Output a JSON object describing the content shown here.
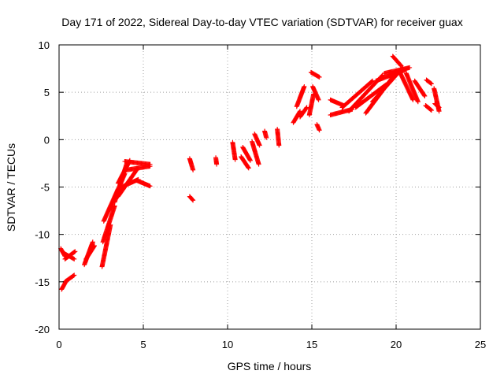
{
  "chart_data": {
    "type": "scatter",
    "title": "Day 171 of 2022, Sidereal Day-to-day VTEC variation (SDTVAR) for receiver guax",
    "xlabel": "GPS time / hours",
    "ylabel": "SDTVAR / TECUs",
    "xlim": [
      0,
      25
    ],
    "ylim": [
      -20,
      10
    ],
    "xticks": [
      0,
      5,
      10,
      15,
      20,
      25
    ],
    "yticks": [
      -20,
      -15,
      -10,
      -5,
      0,
      5,
      10
    ],
    "xtick_labels": [
      "0",
      "5",
      "10",
      "15",
      "20",
      "25"
    ],
    "ytick_labels": [
      "-20",
      "-15",
      "-10",
      "-5",
      "0",
      "5",
      "10"
    ],
    "grid": true,
    "marker": "plus",
    "color": "#ff0000",
    "segments": [
      {
        "x0": 0.15,
        "x1": 0.4,
        "y0": -15.8,
        "y1": -15.0
      },
      {
        "x0": 0.35,
        "x1": 0.9,
        "y0": -15.0,
        "y1": -14.3
      },
      {
        "x0": 0.1,
        "x1": 0.35,
        "y0": -11.5,
        "y1": -12.3
      },
      {
        "x0": 0.3,
        "x1": 0.9,
        "y0": -12.0,
        "y1": -12.6
      },
      {
        "x0": 0.35,
        "x1": 0.95,
        "y0": -12.6,
        "y1": -11.8
      },
      {
        "x0": 1.5,
        "x1": 2.0,
        "y0": -13.2,
        "y1": -10.8
      },
      {
        "x0": 1.6,
        "x1": 2.1,
        "y0": -12.6,
        "y1": -11.2
      },
      {
        "x0": 2.55,
        "x1": 3.05,
        "y0": -13.4,
        "y1": -9.0
      },
      {
        "x0": 2.6,
        "x1": 3.3,
        "y0": -10.8,
        "y1": -7.0
      },
      {
        "x0": 2.65,
        "x1": 3.5,
        "y0": -8.6,
        "y1": -5.2
      },
      {
        "x0": 3.0,
        "x1": 3.9,
        "y0": -7.4,
        "y1": -3.6
      },
      {
        "x0": 3.3,
        "x1": 4.0,
        "y0": -6.6,
        "y1": -2.6
      },
      {
        "x0": 3.5,
        "x1": 4.2,
        "y0": -4.6,
        "y1": -2.2
      },
      {
        "x0": 3.9,
        "x1": 5.4,
        "y0": -2.3,
        "y1": -2.6
      },
      {
        "x0": 4.0,
        "x1": 5.4,
        "y0": -3.2,
        "y1": -2.8
      },
      {
        "x0": 3.5,
        "x1": 4.6,
        "y0": -6.0,
        "y1": -3.2
      },
      {
        "x0": 4.6,
        "x1": 5.4,
        "y0": -4.3,
        "y1": -4.9
      },
      {
        "x0": 3.7,
        "x1": 4.7,
        "y0": -5.0,
        "y1": -4.2
      },
      {
        "x0": 7.75,
        "x1": 7.95,
        "y0": -2.0,
        "y1": -3.2
      },
      {
        "x0": 7.75,
        "x1": 7.95,
        "y0": -6.0,
        "y1": -6.4
      },
      {
        "x0": 9.3,
        "x1": 9.35,
        "y0": -1.9,
        "y1": -2.6
      },
      {
        "x0": 10.3,
        "x1": 10.45,
        "y0": -0.3,
        "y1": -2.1
      },
      {
        "x0": 10.8,
        "x1": 11.25,
        "y0": -1.8,
        "y1": -3.0
      },
      {
        "x0": 10.9,
        "x1": 11.35,
        "y0": -0.8,
        "y1": -2.2
      },
      {
        "x0": 11.45,
        "x1": 11.85,
        "y0": -0.2,
        "y1": -2.6
      },
      {
        "x0": 11.6,
        "x1": 11.9,
        "y0": 0.6,
        "y1": -0.6
      },
      {
        "x0": 12.2,
        "x1": 12.3,
        "y0": 0.9,
        "y1": 0.2
      },
      {
        "x0": 12.95,
        "x1": 13.05,
        "y0": 1.1,
        "y1": -0.6
      },
      {
        "x0": 13.9,
        "x1": 14.3,
        "y0": 1.8,
        "y1": 3.0
      },
      {
        "x0": 14.1,
        "x1": 14.55,
        "y0": 3.5,
        "y1": 5.6
      },
      {
        "x0": 14.3,
        "x1": 14.7,
        "y0": 2.4,
        "y1": 3.4
      },
      {
        "x0": 14.85,
        "x1": 15.1,
        "y0": 2.6,
        "y1": 4.8
      },
      {
        "x0": 14.95,
        "x1": 15.45,
        "y0": 7.1,
        "y1": 6.6
      },
      {
        "x0": 15.05,
        "x1": 15.4,
        "y0": 5.6,
        "y1": 4.2
      },
      {
        "x0": 15.3,
        "x1": 15.45,
        "y0": 1.6,
        "y1": 1.0
      },
      {
        "x0": 16.1,
        "x1": 16.9,
        "y0": 4.2,
        "y1": 3.6
      },
      {
        "x0": 16.1,
        "x1": 17.4,
        "y0": 2.6,
        "y1": 3.2
      },
      {
        "x0": 16.8,
        "x1": 18.6,
        "y0": 3.4,
        "y1": 6.2
      },
      {
        "x0": 17.2,
        "x1": 19.2,
        "y0": 3.0,
        "y1": 6.8
      },
      {
        "x0": 17.6,
        "x1": 19.4,
        "y0": 3.4,
        "y1": 5.8
      },
      {
        "x0": 18.2,
        "x1": 19.8,
        "y0": 2.8,
        "y1": 6.6
      },
      {
        "x0": 18.6,
        "x1": 20.4,
        "y0": 4.0,
        "y1": 7.6
      },
      {
        "x0": 18.8,
        "x1": 20.6,
        "y0": 6.2,
        "y1": 7.4
      },
      {
        "x0": 19.3,
        "x1": 20.8,
        "y0": 7.0,
        "y1": 7.6
      },
      {
        "x0": 19.8,
        "x1": 20.3,
        "y0": 8.8,
        "y1": 7.8
      },
      {
        "x0": 20.2,
        "x1": 21.0,
        "y0": 7.2,
        "y1": 4.2
      },
      {
        "x0": 20.6,
        "x1": 21.3,
        "y0": 7.0,
        "y1": 4.0
      },
      {
        "x0": 21.1,
        "x1": 21.7,
        "y0": 6.2,
        "y1": 4.6
      },
      {
        "x0": 21.75,
        "x1": 22.1,
        "y0": 3.6,
        "y1": 3.1
      },
      {
        "x0": 21.8,
        "x1": 22.1,
        "y0": 6.3,
        "y1": 5.9
      },
      {
        "x0": 22.25,
        "x1": 22.55,
        "y0": 5.4,
        "y1": 3.0
      },
      {
        "x0": 22.3,
        "x1": 22.55,
        "y0": 3.8,
        "y1": 3.4
      }
    ]
  }
}
